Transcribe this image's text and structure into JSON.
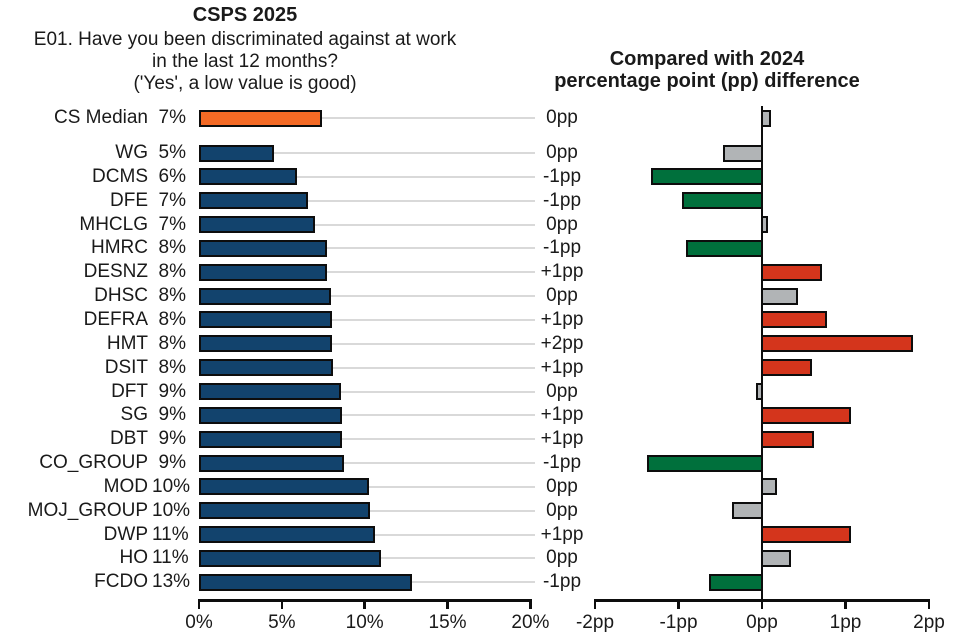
{
  "colors": {
    "blue": "#12436D",
    "orange": "#F46A25",
    "green": "#00703C",
    "red": "#D4351C",
    "gray": "#B1B4B6",
    "gridline": "#D9D9D9",
    "axis": "#0d0d0d"
  },
  "chart_data": {
    "type": "bar",
    "orientation": "horizontal",
    "left_panel": {
      "title": "CSPS 2025",
      "subtitle_lines": [
        "E01. Have you been discriminated against at work",
        "in the last 12 months?",
        "('Yes', a low value is good)"
      ],
      "axis": {
        "unit": "%",
        "range": [
          0,
          20
        ],
        "tick_values": [
          0,
          5,
          10,
          15,
          20
        ],
        "tick_labels": [
          "0%",
          "5%",
          "10%",
          "15%",
          "20%"
        ]
      },
      "gridlines": true
    },
    "right_panel": {
      "title_lines": [
        "Compared with 2024",
        "percentage point (pp) difference"
      ],
      "axis": {
        "unit": "pp",
        "range": [
          -2,
          2
        ],
        "tick_values": [
          -2,
          -1,
          0,
          1,
          2
        ],
        "tick_labels": [
          "-2pp",
          "-1pp",
          "0pp",
          "1pp",
          "2pp"
        ]
      },
      "gridlines": false,
      "zero_line": true
    },
    "rows": [
      {
        "label": "CS Median",
        "value_label": "7%",
        "value": 7.4,
        "bar_color": "orange",
        "diff_label": "0pp",
        "diff": 0.07,
        "diff_color": "gray"
      },
      {
        "label": "WG",
        "value_label": "5%",
        "value": 4.5,
        "bar_color": "blue",
        "diff_label": "0pp",
        "diff": -0.44,
        "diff_color": "gray"
      },
      {
        "label": "DCMS",
        "value_label": "6%",
        "value": 5.9,
        "bar_color": "blue",
        "diff_label": "-1pp",
        "diff": -1.3,
        "diff_color": "green"
      },
      {
        "label": "DFE",
        "value_label": "7%",
        "value": 6.6,
        "bar_color": "blue",
        "diff_label": "-1pp",
        "diff": -0.93,
        "diff_color": "green"
      },
      {
        "label": "MHCLG",
        "value_label": "7%",
        "value": 7.0,
        "bar_color": "blue",
        "diff_label": "0pp",
        "diff": 0.04,
        "diff_color": "gray"
      },
      {
        "label": "HMRC",
        "value_label": "8%",
        "value": 7.7,
        "bar_color": "blue",
        "diff_label": "-1pp",
        "diff": -0.88,
        "diff_color": "green"
      },
      {
        "label": "DESNZ",
        "value_label": "8%",
        "value": 7.75,
        "bar_color": "blue",
        "diff_label": "+1pp",
        "diff": 0.69,
        "diff_color": "red"
      },
      {
        "label": "DHSC",
        "value_label": "8%",
        "value": 7.95,
        "bar_color": "blue",
        "diff_label": "0pp",
        "diff": 0.4,
        "diff_color": "gray"
      },
      {
        "label": "DEFRA",
        "value_label": "8%",
        "value": 8.0,
        "bar_color": "blue",
        "diff_label": "+1pp",
        "diff": 0.75,
        "diff_color": "red"
      },
      {
        "label": "HMT",
        "value_label": "8%",
        "value": 8.05,
        "bar_color": "blue",
        "diff_label": "+2pp",
        "diff": 1.77,
        "diff_color": "red"
      },
      {
        "label": "DSIT",
        "value_label": "8%",
        "value": 8.1,
        "bar_color": "blue",
        "diff_label": "+1pp",
        "diff": 0.57,
        "diff_color": "red"
      },
      {
        "label": "DFT",
        "value_label": "9%",
        "value": 8.55,
        "bar_color": "blue",
        "diff_label": "0pp",
        "diff": -0.04,
        "diff_color": "gray"
      },
      {
        "label": "SG",
        "value_label": "9%",
        "value": 8.6,
        "bar_color": "blue",
        "diff_label": "+1pp",
        "diff": 1.03,
        "diff_color": "red"
      },
      {
        "label": "DBT",
        "value_label": "9%",
        "value": 8.65,
        "bar_color": "blue",
        "diff_label": "+1pp",
        "diff": 0.59,
        "diff_color": "red"
      },
      {
        "label": "CO_GROUP",
        "value_label": "9%",
        "value": 8.75,
        "bar_color": "blue",
        "diff_label": "-1pp",
        "diff": -1.34,
        "diff_color": "green"
      },
      {
        "label": "MOD",
        "value_label": "10%",
        "value": 10.25,
        "bar_color": "blue",
        "diff_label": "0pp",
        "diff": 0.15,
        "diff_color": "gray"
      },
      {
        "label": "MOJ_GROUP",
        "value_label": "10%",
        "value": 10.3,
        "bar_color": "blue",
        "diff_label": "0pp",
        "diff": -0.33,
        "diff_color": "gray"
      },
      {
        "label": "DWP",
        "value_label": "11%",
        "value": 10.6,
        "bar_color": "blue",
        "diff_label": "+1pp",
        "diff": 1.03,
        "diff_color": "red"
      },
      {
        "label": "HO",
        "value_label": "11%",
        "value": 11.0,
        "bar_color": "blue",
        "diff_label": "0pp",
        "diff": 0.32,
        "diff_color": "gray"
      },
      {
        "label": "FCDO",
        "value_label": "13%",
        "value": 12.85,
        "bar_color": "blue",
        "diff_label": "-1pp",
        "diff": -0.6,
        "diff_color": "green"
      }
    ]
  }
}
